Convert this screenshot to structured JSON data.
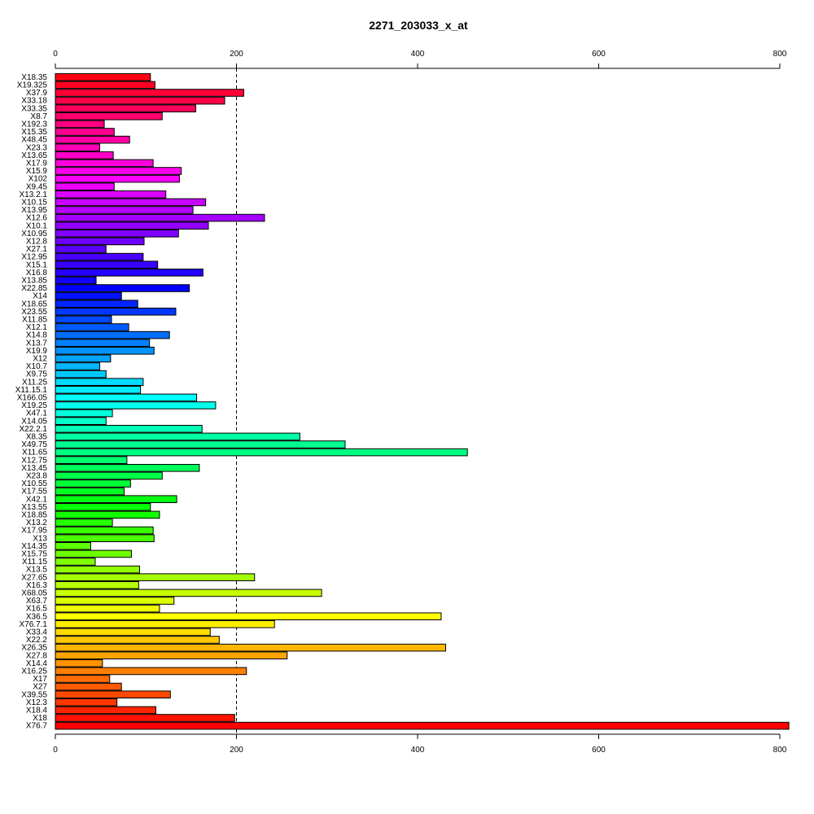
{
  "chart_data": {
    "type": "bar",
    "orientation": "horizontal",
    "title": "2271_203033_x_at",
    "xlabel": "",
    "ylabel": "",
    "xlim": [
      0,
      800
    ],
    "xticks": [
      0,
      200,
      400,
      600,
      800
    ],
    "axes": [
      "top",
      "bottom"
    ],
    "reference_line": 200,
    "grid": false,
    "legend": "none",
    "color_scheme": "rainbow",
    "categories": [
      "X18.35",
      "X19.325",
      "X37.9",
      "X33.18",
      "X33.35",
      "X8.7",
      "X192.3",
      "X15.35",
      "X48.45",
      "X23.3",
      "X13.65",
      "X17.9",
      "X15.9",
      "X102",
      "X9.45",
      "X13.2.1",
      "X10.15",
      "X13.95",
      "X12.6",
      "X10.1",
      "X10.95",
      "X12.8",
      "X27.1",
      "X12.95",
      "X15.1",
      "X16.8",
      "X13.85",
      "X22.85",
      "X14",
      "X18.65",
      "X23.55",
      "X11.85",
      "X12.1",
      "X14.8",
      "X13.7",
      "X19.9",
      "X12",
      "X10.7",
      "X9.75",
      "X11.25",
      "X11.15.1",
      "X166.05",
      "X19.25",
      "X47.1",
      "X14.05",
      "X22.2.1",
      "X8.35",
      "X49.75",
      "X11.65",
      "X12.75",
      "X13.45",
      "X23.8",
      "X10.55",
      "X17.55",
      "X42.1",
      "X13.55",
      "X18.85",
      "X13.2",
      "X17.95",
      "X13",
      "X14.35",
      "X15.75",
      "X11.15",
      "X13.5",
      "X27.65",
      "X16.3",
      "X68.05",
      "X63.7",
      "X16.5",
      "X36.5",
      "X76.7.1",
      "X33.4",
      "X22.2",
      "X26.35",
      "X27.8",
      "X14.4",
      "X16.25",
      "X17",
      "X27",
      "X39.55",
      "X12.3",
      "X18.4",
      "X18",
      "X76.7"
    ],
    "values": [
      105,
      110,
      208,
      187,
      155,
      118,
      54,
      65,
      82,
      49,
      64,
      108,
      139,
      137,
      65,
      122,
      166,
      152,
      231,
      169,
      136,
      98,
      56,
      97,
      113,
      163,
      45,
      148,
      73,
      91,
      133,
      62,
      81,
      126,
      104,
      109,
      61,
      49,
      56,
      97,
      94,
      156,
      177,
      63,
      56,
      162,
      270,
      320,
      455,
      79,
      159,
      118,
      83,
      76,
      134,
      105,
      115,
      63,
      108,
      109,
      39,
      84,
      44,
      93,
      220,
      92,
      294,
      131,
      115,
      426,
      242,
      171,
      181,
      431,
      256,
      52,
      211,
      60,
      73,
      127,
      68,
      111,
      198,
      810
    ]
  }
}
